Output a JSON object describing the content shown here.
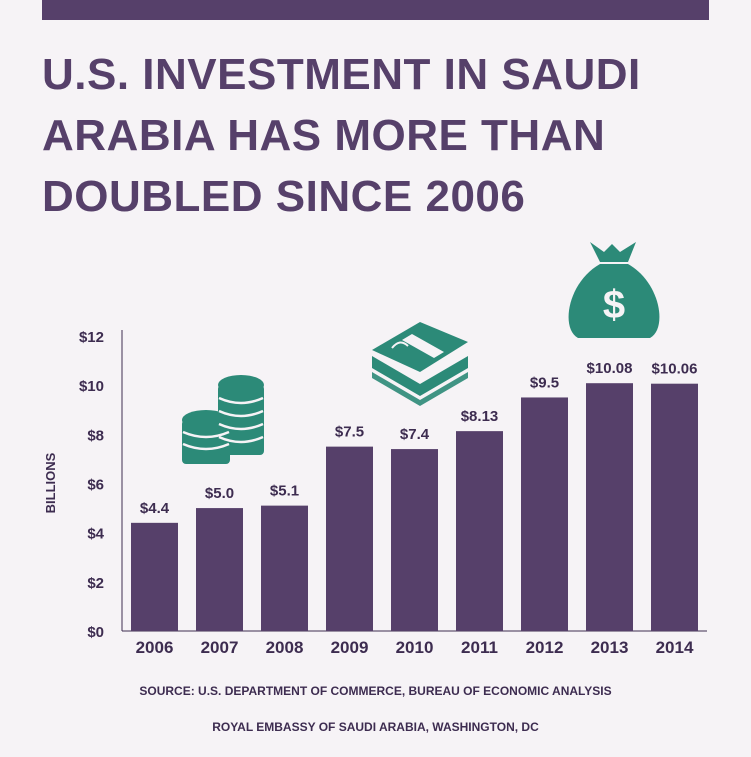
{
  "header": {
    "title_lines": [
      "U.S. INVESTMENT IN SAUDI",
      "ARABIA HAS MORE THAN",
      "DOUBLED SINCE 2006"
    ]
  },
  "chart_data": {
    "type": "bar",
    "title": "U.S. INVESTMENT IN SAUDI ARABIA HAS MORE THAN DOUBLED SINCE 2006",
    "categories": [
      "2006",
      "2007",
      "2008",
      "2009",
      "2010",
      "2011",
      "2012",
      "2013",
      "2014"
    ],
    "values": [
      4.4,
      5.0,
      5.1,
      7.5,
      7.4,
      8.13,
      9.5,
      10.08,
      10.06
    ],
    "value_labels": [
      "$4.4",
      "$5.0",
      "$5.1",
      "$7.5",
      "$7.4",
      "$8.13",
      "$9.5",
      "$10.08",
      "$10.06"
    ],
    "ylabel": "BILLIONS",
    "xlabel": "",
    "ylim": [
      0,
      12
    ],
    "y_ticks": [
      0,
      2,
      4,
      6,
      8,
      10,
      12
    ],
    "y_tick_labels": [
      "$0",
      "$2",
      "$4",
      "$6",
      "$8",
      "$10",
      "$12"
    ],
    "grid": false,
    "bar_color": "#56406a",
    "icon_color": "#2c8a78",
    "icons": [
      "coin-stack-icon",
      "cash-bundle-icon",
      "money-bag-icon"
    ]
  },
  "footer": {
    "source": "SOURCE: U.S. DEPARTMENT OF COMMERCE, BUREAU OF ECONOMIC ANALYSIS",
    "credit": "ROYAL EMBASSY OF SAUDI ARABIA, WASHINGTON, DC"
  },
  "colors": {
    "background": "#f6f3f6",
    "accent": "#56406a",
    "text": "#3d2c50",
    "icon": "#2c8a78"
  }
}
